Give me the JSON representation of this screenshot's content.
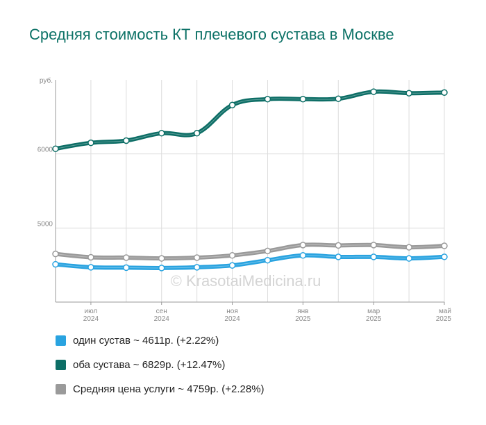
{
  "title": "Средняя стоимость КТ плечевого сустава в Москве",
  "watermark": "© KrasotaiMedicina.ru",
  "chart_data": {
    "type": "line",
    "y_unit": "руб.",
    "y_ticks": [
      "6000",
      "5000"
    ],
    "y_tick_values": [
      6000,
      5000
    ],
    "ylim": [
      4000,
      7000
    ],
    "x": [
      "2024-06",
      "2024-07",
      "2024-08",
      "2024-09",
      "2024-10",
      "2024-11",
      "2024-12",
      "2025-01",
      "2025-02",
      "2025-03",
      "2025-04",
      "2025-05"
    ],
    "x_tick_labels": [
      {
        "idx": 1,
        "line1": "июл",
        "line2": "2024"
      },
      {
        "idx": 3,
        "line1": "сен",
        "line2": "2024"
      },
      {
        "idx": 5,
        "line1": "ноя",
        "line2": "2024"
      },
      {
        "idx": 7,
        "line1": "янв",
        "line2": "2025"
      },
      {
        "idx": 9,
        "line1": "мар",
        "line2": "2025"
      },
      {
        "idx": 11,
        "line1": "май",
        "line2": "2025"
      }
    ],
    "grid": true,
    "series": [
      {
        "name": "один сустав",
        "color": "#29a3e0",
        "values": [
          4510,
          4470,
          4465,
          4460,
          4470,
          4495,
          4565,
          4630,
          4610,
          4610,
          4590,
          4611
        ]
      },
      {
        "name": "оба сустава",
        "color": "#0d6e66",
        "values": [
          6070,
          6150,
          6180,
          6280,
          6280,
          6660,
          6740,
          6740,
          6745,
          6840,
          6820,
          6829
        ]
      },
      {
        "name": "Средняя цена услуги",
        "color": "#9a9a9a",
        "values": [
          4650,
          4605,
          4600,
          4590,
          4600,
          4630,
          4690,
          4770,
          4765,
          4770,
          4740,
          4759
        ]
      }
    ]
  },
  "legend": [
    {
      "text": "один сустав ~ 4611р. (+2.22%)",
      "color": "#29a3e0"
    },
    {
      "text": "оба сустава ~ 6829р. (+12.47%)",
      "color": "#0d6e66"
    },
    {
      "text": "Средняя цена услуги ~ 4759р. (+2.28%)",
      "color": "#9a9a9a"
    }
  ]
}
